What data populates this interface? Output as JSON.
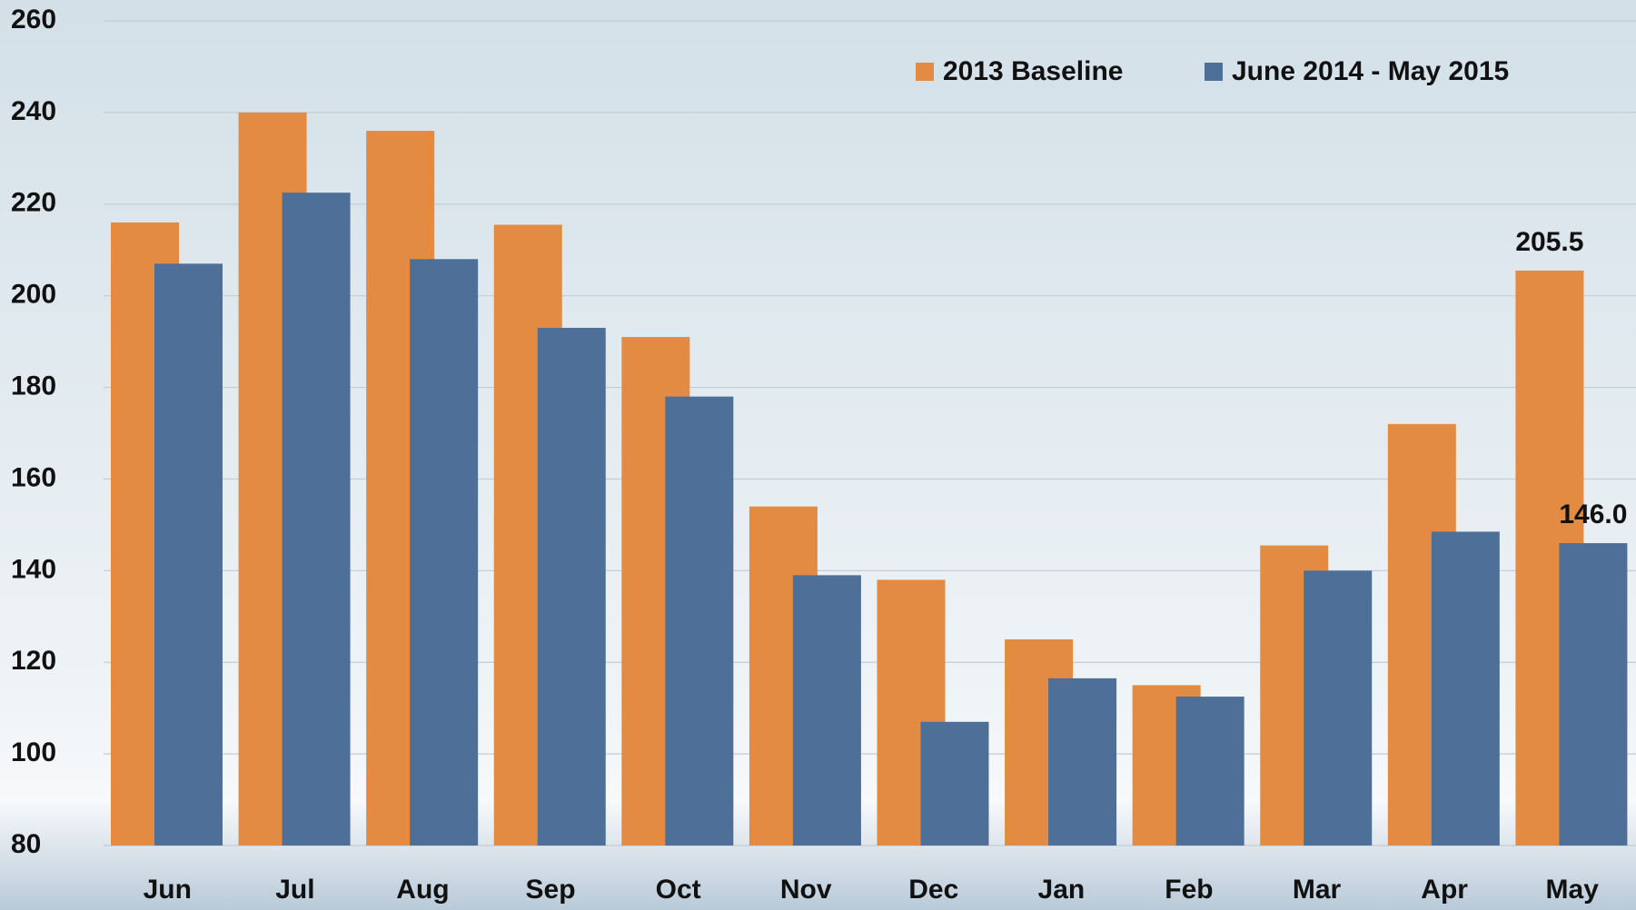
{
  "chart_data": {
    "type": "bar",
    "categories": [
      "Jun",
      "Jul",
      "Aug",
      "Sep",
      "Oct",
      "Nov",
      "Dec",
      "Jan",
      "Feb",
      "Mar",
      "Apr",
      "May"
    ],
    "series": [
      {
        "name": "2013 Baseline",
        "color": "#e38b42",
        "values": [
          216,
          240,
          236,
          215.5,
          191,
          154,
          138,
          125,
          115,
          145.5,
          172,
          205.5
        ],
        "value_labels": [
          null,
          null,
          null,
          null,
          null,
          null,
          null,
          null,
          null,
          null,
          null,
          "205.5"
        ]
      },
      {
        "name": "June 2014 - May 2015",
        "color": "#4e6f98",
        "values": [
          207,
          222.5,
          208,
          193,
          178,
          139,
          107,
          116.5,
          112.5,
          140,
          148.5,
          146
        ],
        "value_labels": [
          null,
          null,
          null,
          null,
          null,
          null,
          null,
          null,
          null,
          null,
          null,
          "146.0"
        ]
      }
    ],
    "ylim": [
      80,
      260
    ],
    "yticks": [
      80,
      100,
      120,
      140,
      160,
      180,
      200,
      220,
      240,
      260
    ],
    "grid": true,
    "legend": "upper right"
  }
}
